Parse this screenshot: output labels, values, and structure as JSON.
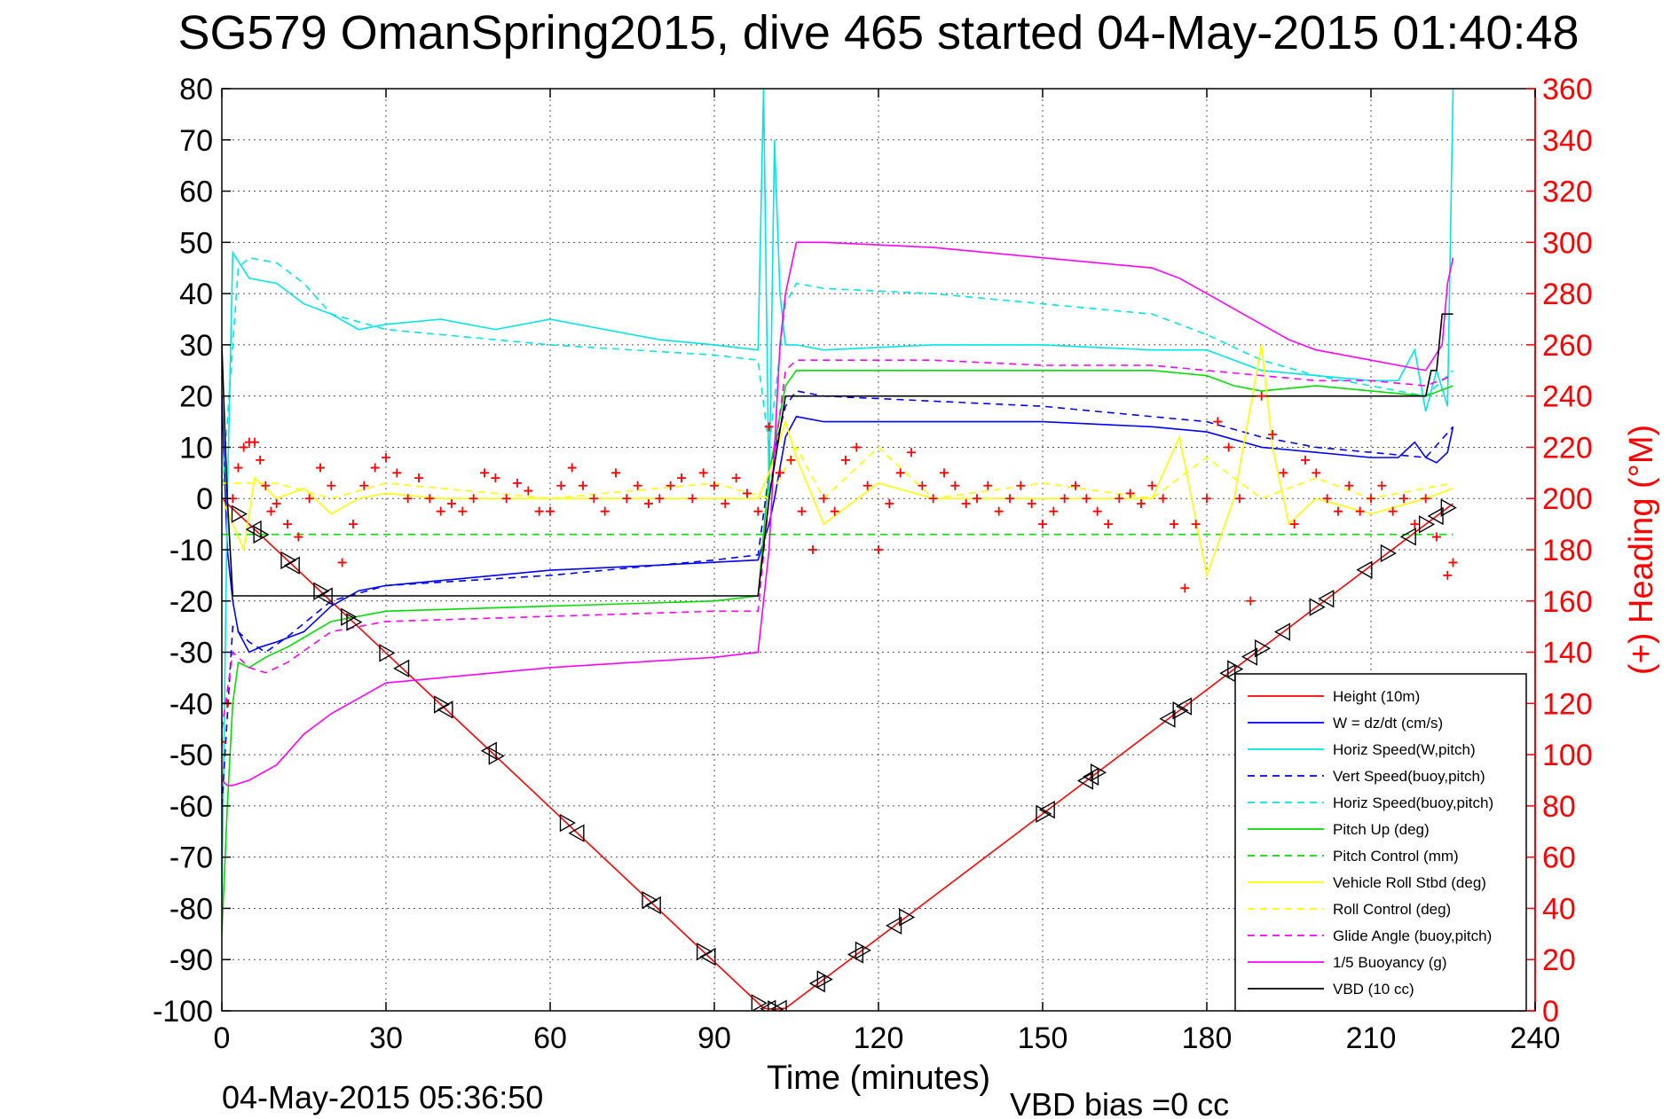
{
  "title": "SG579 OmanSpring2015, dive 465 started 04-May-2015 01:40:48",
  "footer_left": "04-May-2015 05:36:50",
  "footer_right": "VBD bias =0 cc",
  "chart_data": {
    "type": "line",
    "xlabel": "Time (minutes)",
    "ylabel": "",
    "y2label": "(+) Heading (°M)",
    "xlim": [
      0,
      240
    ],
    "ylim": [
      -100,
      80
    ],
    "y2lim": [
      0,
      360
    ],
    "xticks": [
      "0",
      "30",
      "60",
      "90",
      "120",
      "150",
      "180",
      "210",
      "240"
    ],
    "yticks": [
      "80",
      "70",
      "60",
      "50",
      "40",
      "30",
      "20",
      "10",
      "0",
      "-10",
      "-20",
      "-30",
      "-40",
      "-50",
      "-60",
      "-70",
      "-80",
      "-90",
      "-100"
    ],
    "y2ticks": [
      "360",
      "340",
      "320",
      "300",
      "280",
      "260",
      "240",
      "220",
      "200",
      "180",
      "160",
      "140",
      "120",
      "100",
      "80",
      "60",
      "40",
      "20",
      "0"
    ],
    "grid": true,
    "legend_position": "bottom-right",
    "colors": {
      "height": "#ff0000",
      "w": "#0000ff",
      "horiz_speed": "#00e5e5",
      "pitch": "#00dd00",
      "roll": "#ffff00",
      "glide": "#ff00ff",
      "buoyancy": "#ff00ff",
      "vbd": "#000000",
      "heading": "#ff0000"
    },
    "series": [
      {
        "name": "Height (10m)",
        "color": "#ff0000",
        "dash": "none",
        "x": [
          0,
          99,
          100,
          101,
          102,
          103,
          225
        ],
        "y": [
          0,
          -99.5,
          -99.6,
          -99.7,
          -99.6,
          -99.5,
          -1
        ]
      },
      {
        "name": "W = dz/dt (cm/s)",
        "color": "#0000ff",
        "dash": "none",
        "x": [
          0,
          1,
          2,
          3,
          5,
          7,
          10,
          15,
          20,
          25,
          30,
          40,
          60,
          80,
          98,
          100,
          101,
          103,
          105,
          110,
          130,
          150,
          170,
          180,
          190,
          200,
          210,
          215,
          218,
          220,
          222,
          224,
          225
        ],
        "y": [
          20,
          -10,
          -20,
          -26,
          -30,
          -29,
          -28,
          -26,
          -21,
          -18,
          -17,
          -16,
          -14,
          -13,
          -12,
          -5,
          0,
          12,
          16,
          15,
          15,
          15,
          14,
          13,
          10,
          9,
          8,
          8,
          11,
          8,
          7,
          9,
          14
        ]
      },
      {
        "name": "Horiz Speed(W,pitch)",
        "color": "#00e5e5",
        "dash": "none",
        "x": [
          0,
          1,
          2,
          5,
          10,
          15,
          20,
          25,
          30,
          40,
          50,
          60,
          70,
          80,
          90,
          98,
          99,
          100,
          101,
          102,
          103,
          105,
          110,
          130,
          150,
          170,
          180,
          185,
          190,
          200,
          210,
          215,
          218,
          220,
          222,
          224,
          225
        ],
        "y": [
          -78,
          0,
          48,
          43,
          42,
          38,
          36,
          33,
          34,
          35,
          33,
          35,
          33,
          31,
          30,
          29,
          80,
          0,
          70,
          40,
          30,
          30,
          29,
          30,
          30,
          29,
          29,
          27,
          25,
          24,
          23,
          23,
          29,
          17,
          25,
          18,
          80
        ]
      },
      {
        "name": "Vert Speed(buoy,pitch)",
        "color": "#0000ff",
        "dash": "8,6",
        "x": [
          0,
          2,
          5,
          8,
          12,
          20,
          30,
          60,
          90,
          98,
          100,
          103,
          105,
          110,
          130,
          150,
          170,
          180,
          190,
          200,
          210,
          220,
          225
        ],
        "y": [
          -60,
          -25,
          -28,
          -30,
          -27,
          -20,
          -17,
          -15,
          -12,
          -11,
          5,
          18,
          21,
          20,
          19,
          18,
          16,
          15,
          12,
          10,
          9,
          8,
          14
        ]
      },
      {
        "name": "Horiz Speed(buoy,pitch)",
        "color": "#00e5e5",
        "dash": "8,6",
        "x": [
          0,
          3,
          5,
          10,
          15,
          20,
          30,
          60,
          90,
          98,
          100,
          103,
          105,
          110,
          130,
          150,
          170,
          175,
          180,
          190,
          200,
          210,
          220,
          225
        ],
        "y": [
          0,
          45,
          47,
          46,
          42,
          36,
          33,
          30,
          28,
          27,
          10,
          38,
          42,
          41,
          40,
          38,
          36,
          34,
          32,
          27,
          24,
          22,
          20,
          25
        ]
      },
      {
        "name": "Pitch Up (deg)",
        "color": "#00dd00",
        "dash": "none",
        "x": [
          0,
          1,
          2,
          3,
          5,
          8,
          12,
          20,
          30,
          60,
          90,
          98,
          100,
          103,
          105,
          110,
          130,
          150,
          170,
          180,
          185,
          190,
          200,
          210,
          220,
          225
        ],
        "y": [
          -85,
          -60,
          -40,
          -32,
          -33,
          -31,
          -29,
          -24,
          -22,
          -21,
          -20,
          -19,
          5,
          22,
          25,
          25,
          25,
          25,
          25,
          24,
          22,
          21,
          22,
          21,
          20,
          22
        ]
      },
      {
        "name": "Pitch Control (mm)",
        "color": "#00dd00",
        "dash": "8,6",
        "x": [
          0,
          1,
          2,
          225
        ],
        "y": [
          -7,
          -7,
          -7,
          -7
        ]
      },
      {
        "name": "Vehicle Roll Stbd (deg)",
        "color": "#ffff00",
        "dash": "none",
        "x": [
          0,
          4,
          6,
          10,
          15,
          20,
          25,
          30,
          40,
          60,
          90,
          98,
          100,
          103,
          105,
          110,
          120,
          130,
          150,
          170,
          175,
          180,
          185,
          190,
          192,
          195,
          200,
          210,
          220,
          225
        ],
        "y": [
          0,
          -10,
          4,
          0,
          2,
          -3,
          0,
          1,
          0,
          0,
          0,
          0,
          5,
          15,
          8,
          -5,
          3,
          0,
          0,
          0,
          12,
          -15,
          0,
          30,
          10,
          -5,
          0,
          -3,
          0,
          2
        ]
      },
      {
        "name": "Roll Control (deg)",
        "color": "#ffff00",
        "dash": "8,6",
        "x": [
          0,
          10,
          20,
          30,
          60,
          90,
          100,
          105,
          110,
          120,
          130,
          150,
          170,
          180,
          190,
          200,
          210,
          225
        ],
        "y": [
          3,
          3,
          0,
          3,
          0,
          3,
          0,
          10,
          0,
          10,
          0,
          3,
          0,
          8,
          0,
          4,
          0,
          3
        ]
      },
      {
        "name": "Glide Angle (buoy,pitch)",
        "color": "#ff00ff",
        "dash": "8,6",
        "x": [
          0,
          2,
          5,
          8,
          12,
          20,
          30,
          60,
          90,
          98,
          100,
          103,
          105,
          110,
          130,
          150,
          170,
          180,
          190,
          200,
          210,
          220,
          225
        ],
        "y": [
          -45,
          -30,
          -33,
          -34,
          -32,
          -26,
          -24,
          -23,
          -22,
          -22,
          0,
          25,
          27,
          27,
          27,
          26,
          26,
          25,
          24,
          23,
          23,
          22,
          24
        ]
      },
      {
        "name": "1/5 Buoyancy (g)",
        "color": "#ff00ff",
        "dash": "none",
        "x": [
          0,
          1,
          2,
          5,
          10,
          15,
          20,
          25,
          30,
          40,
          60,
          90,
          98,
          100,
          102,
          103,
          105,
          110,
          130,
          150,
          170,
          175,
          180,
          185,
          190,
          195,
          200,
          210,
          215,
          220,
          223,
          224,
          225
        ],
        "y": [
          -55,
          -56,
          -56,
          -55,
          -52,
          -46,
          -42,
          -39,
          -36,
          -35,
          -33,
          -31,
          -30,
          -10,
          30,
          40,
          50,
          50,
          49,
          47,
          45,
          43,
          40,
          37,
          34,
          31,
          29,
          27,
          26,
          25,
          30,
          42,
          47
        ]
      },
      {
        "name": "VBD (10 cc)",
        "color": "#000000",
        "dash": "none",
        "x": [
          0,
          1,
          2,
          98,
          100,
          103,
          104,
          110,
          220,
          221,
          222,
          223,
          224,
          225
        ],
        "y": [
          30,
          0,
          -19,
          -19,
          0,
          20,
          20,
          20,
          20,
          25,
          25,
          36,
          36,
          36
        ]
      }
    ],
    "heading": {
      "name": "Heading",
      "color": "#ff0000",
      "marker": "+",
      "x": [
        0,
        1,
        2,
        3,
        4,
        5,
        6,
        7,
        8,
        9,
        10,
        12,
        14,
        16,
        18,
        20,
        22,
        24,
        26,
        28,
        30,
        32,
        34,
        36,
        38,
        40,
        42,
        44,
        46,
        48,
        50,
        52,
        54,
        56,
        58,
        60,
        62,
        64,
        66,
        68,
        70,
        72,
        74,
        76,
        78,
        80,
        82,
        84,
        86,
        88,
        90,
        92,
        94,
        96,
        98,
        100,
        102,
        104,
        106,
        108,
        110,
        112,
        114,
        116,
        118,
        120,
        122,
        124,
        126,
        128,
        130,
        132,
        134,
        136,
        138,
        140,
        142,
        144,
        146,
        148,
        150,
        152,
        154,
        156,
        158,
        160,
        162,
        164,
        166,
        168,
        170,
        172,
        174,
        176,
        178,
        180,
        182,
        184,
        186,
        188,
        190,
        192,
        194,
        196,
        198,
        200,
        202,
        204,
        206,
        208,
        210,
        212,
        214,
        216,
        218,
        220,
        222,
        224,
        225
      ],
      "y": [
        105,
        120,
        200,
        212,
        220,
        222,
        222,
        215,
        205,
        195,
        198,
        190,
        185,
        200,
        212,
        205,
        175,
        190,
        205,
        212,
        216,
        210,
        200,
        208,
        200,
        195,
        198,
        195,
        200,
        210,
        208,
        200,
        206,
        203,
        195,
        195,
        205,
        212,
        205,
        200,
        195,
        210,
        200,
        205,
        198,
        200,
        205,
        208,
        200,
        210,
        205,
        198,
        208,
        202,
        195,
        228,
        210,
        215,
        195,
        180,
        200,
        195,
        215,
        220,
        205,
        180,
        198,
        210,
        218,
        205,
        200,
        210,
        205,
        198,
        200,
        205,
        195,
        200,
        205,
        198,
        190,
        195,
        200,
        205,
        200,
        195,
        190,
        200,
        202,
        198,
        205,
        200,
        190,
        165,
        190,
        200,
        230,
        220,
        200,
        160,
        240,
        225,
        210,
        190,
        215,
        210,
        200,
        195,
        205,
        195,
        200,
        205,
        195,
        200,
        190,
        200,
        185,
        170,
        175
      ]
    },
    "markers": {
      "right_triangles_x": [
        3,
        7,
        12,
        18,
        23,
        24,
        30,
        40,
        50,
        63,
        78,
        88,
        98,
        101,
        110,
        117,
        125,
        150,
        160,
        175,
        185,
        190,
        200,
        213,
        220,
        224
      ],
      "left_triangles_x": [
        6,
        13,
        19,
        33,
        41,
        49,
        65,
        79,
        89,
        100,
        102,
        109,
        116,
        123,
        151,
        158,
        159,
        173,
        176,
        184,
        188,
        194,
        202,
        209,
        217,
        222
      ]
    },
    "legend": [
      "Height (10m)",
      "W = dz/dt (cm/s)",
      "Horiz Speed(W,pitch)",
      "Vert Speed(buoy,pitch)",
      "Horiz Speed(buoy,pitch)",
      "Pitch Up (deg)",
      "Pitch Control (mm)",
      "Vehicle Roll Stbd (deg)",
      "Roll Control (deg)",
      "Glide Angle (buoy,pitch)",
      "1/5 Buoyancy (g)",
      "VBD (10 cc)"
    ]
  }
}
